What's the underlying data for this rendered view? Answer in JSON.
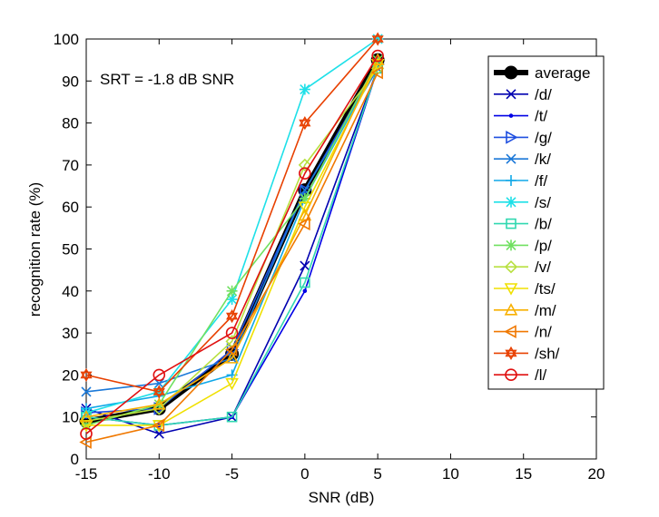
{
  "chart_data": {
    "type": "line",
    "xlabel": "SNR (dB)",
    "ylabel": "recognition rate (%)",
    "xlim": [
      -15,
      20
    ],
    "ylim": [
      0,
      100
    ],
    "xticks": [
      -15,
      -10,
      -5,
      0,
      5,
      10,
      15,
      20
    ],
    "yticks": [
      0,
      10,
      20,
      30,
      40,
      50,
      60,
      70,
      80,
      90,
      100
    ],
    "grid": false,
    "legend_position": "top-right",
    "annotation": "SRT = -1.8 dB SNR",
    "x": [
      -15,
      -10,
      -5,
      0,
      5
    ],
    "series": [
      {
        "name": "average",
        "values": [
          9,
          12,
          25,
          64,
          95
        ],
        "color": "#000000",
        "marker": "circle-filled",
        "width": 6
      },
      {
        "name": "/d/",
        "values": [
          12,
          6,
          10,
          46,
          93
        ],
        "color": "#0000b0",
        "marker": "x"
      },
      {
        "name": "/t/",
        "values": [
          10,
          8,
          10,
          40,
          93
        ],
        "color": "#0000e6",
        "marker": "dot"
      },
      {
        "name": "/g/",
        "values": [
          11,
          12,
          26,
          64,
          94
        ],
        "color": "#1f4fe0",
        "marker": "triangle-right"
      },
      {
        "name": "/k/",
        "values": [
          16,
          18,
          24,
          64,
          93
        ],
        "color": "#1a78d8",
        "marker": "x"
      },
      {
        "name": "/f/",
        "values": [
          12,
          15,
          20,
          62,
          94
        ],
        "color": "#10a8e8",
        "marker": "plus"
      },
      {
        "name": "/s/",
        "values": [
          11,
          16,
          38,
          88,
          100
        ],
        "color": "#1ee0e8",
        "marker": "asterisk"
      },
      {
        "name": "/b/",
        "values": [
          10,
          8,
          10,
          42,
          93
        ],
        "color": "#30d8b0",
        "marker": "square"
      },
      {
        "name": "/p/",
        "values": [
          8,
          13,
          40,
          62,
          95
        ],
        "color": "#70e060",
        "marker": "asterisk"
      },
      {
        "name": "/v/",
        "values": [
          9,
          12,
          28,
          70,
          93
        ],
        "color": "#b8e040",
        "marker": "diamond"
      },
      {
        "name": "/ts/",
        "values": [
          8,
          8,
          18,
          60,
          94
        ],
        "color": "#f0e000",
        "marker": "triangle-down"
      },
      {
        "name": "/m/",
        "values": [
          10,
          13,
          24,
          58,
          95
        ],
        "color": "#f8b000",
        "marker": "triangle-up"
      },
      {
        "name": "/n/",
        "values": [
          4,
          8,
          26,
          56,
          92
        ],
        "color": "#f07800",
        "marker": "triangle-left"
      },
      {
        "name": "/sh/",
        "values": [
          20,
          16,
          34,
          80,
          100
        ],
        "color": "#e84000",
        "marker": "hexagram"
      },
      {
        "name": "/l/",
        "values": [
          6,
          20,
          30,
          68,
          96
        ],
        "color": "#e01010",
        "marker": "circle"
      }
    ]
  }
}
